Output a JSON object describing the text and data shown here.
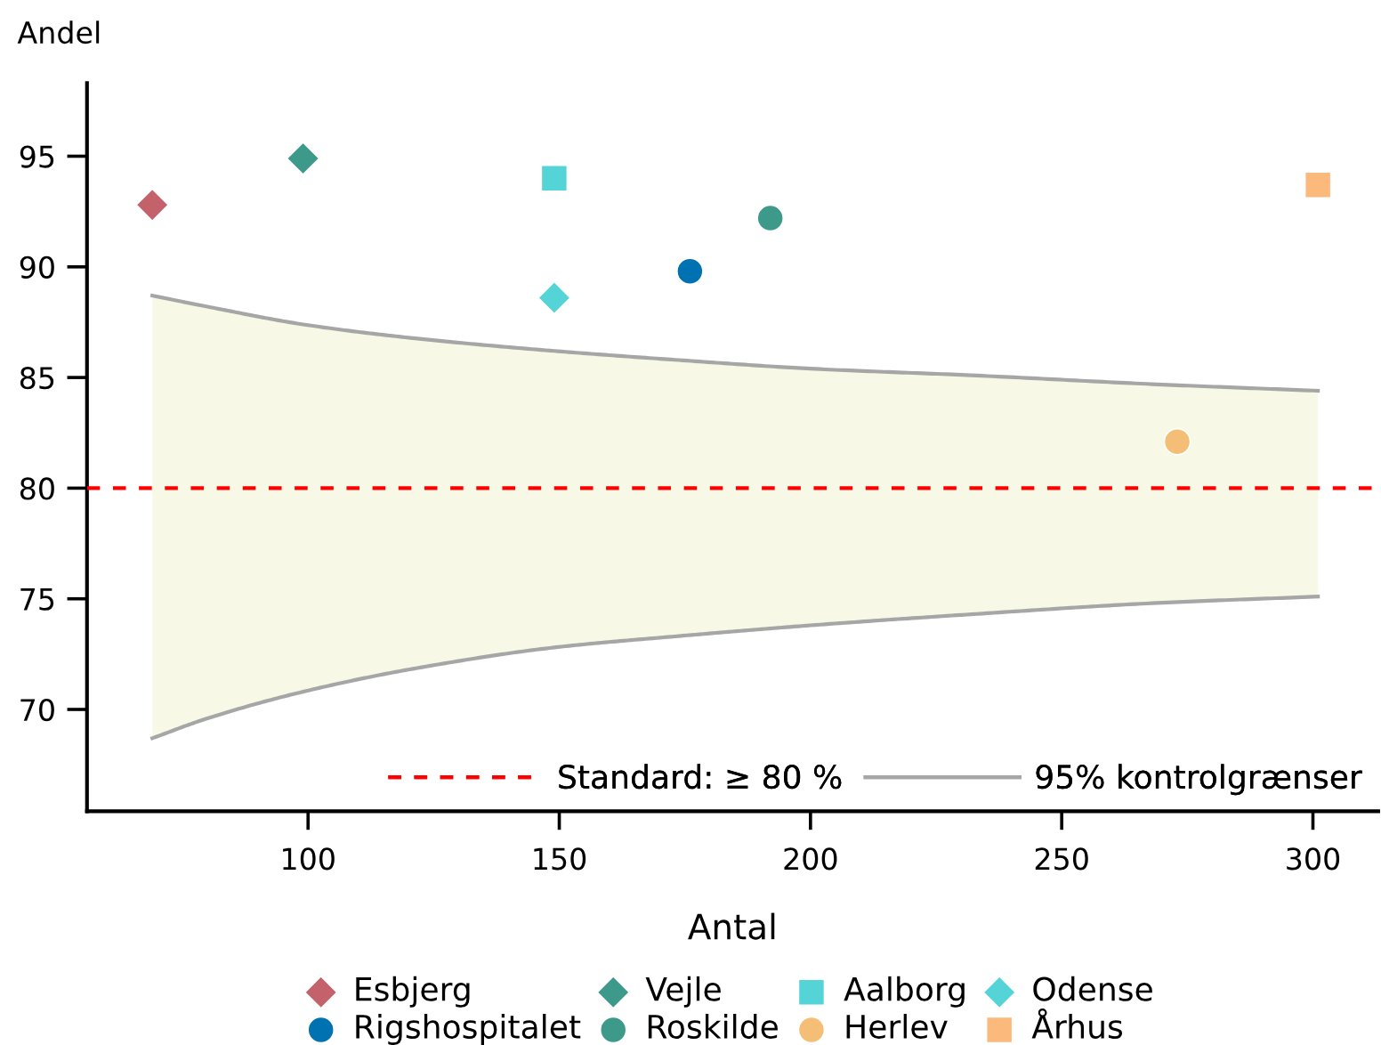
{
  "chart_data": {
    "type": "scatter",
    "xlabel": "Antal",
    "ylabel": "Andel",
    "xlim": [
      56,
      313
    ],
    "ylim": [
      65.4,
      98.3
    ],
    "xticks": [
      100,
      150,
      200,
      250,
      300
    ],
    "yticks": [
      70,
      75,
      80,
      85,
      90,
      95
    ],
    "legend": "bottom",
    "ref_lines": [
      {
        "axis": "y",
        "value": 80,
        "label": "Standard: ≥ 80 %",
        "color": "#ff0000",
        "line_style": "dashed"
      }
    ],
    "series": [
      {
        "type": "area",
        "color": "#f7f9e6",
        "x": [
          69,
          80,
          99,
          120,
          149,
          173,
          200,
          232,
          268,
          301
        ],
        "values": [
          null,
          null,
          null,
          null,
          null,
          null,
          null,
          null,
          null,
          null
        ],
        "lower": [
          68.7,
          69.6,
          70.8,
          71.8,
          72.8,
          73.3,
          73.8,
          74.3,
          74.8,
          75.1
        ],
        "upper": [
          88.7,
          88.2,
          87.4,
          86.8,
          86.2,
          85.8,
          85.4,
          85.1,
          84.7,
          84.4
        ]
      },
      {
        "name": "95% kontrolgrænser",
        "type": "line",
        "color": "#a6a6a6",
        "x": [
          69,
          80,
          99,
          120,
          149,
          173,
          200,
          232,
          268,
          301
        ],
        "values": [
          88.7,
          88.2,
          87.4,
          86.8,
          86.2,
          85.8,
          85.4,
          85.1,
          84.7,
          84.4
        ]
      },
      {
        "type": "line",
        "color": "#a6a6a6",
        "x": [
          69,
          80,
          99,
          120,
          149,
          173,
          200,
          232,
          268,
          301
        ],
        "values": [
          68.7,
          69.6,
          70.8,
          71.8,
          72.8,
          73.3,
          73.8,
          74.3,
          74.8,
          75.1
        ]
      },
      {
        "name": "Esbjerg",
        "marker": "diamond",
        "color": "#c4626c",
        "x": [
          69
        ],
        "values": [
          92.8
        ]
      },
      {
        "name": "Vejle",
        "marker": "diamond",
        "color": "#3d9a8a",
        "x": [
          99
        ],
        "values": [
          94.9
        ]
      },
      {
        "name": "Aalborg",
        "marker": "square",
        "color": "#55d4d8",
        "x": [
          149
        ],
        "values": [
          94.0
        ]
      },
      {
        "name": "Odense",
        "marker": "diamond",
        "color": "#55d4d8",
        "x": [
          149
        ],
        "values": [
          88.6
        ]
      },
      {
        "name": "Rigshospitalet",
        "marker": "circle",
        "color": "#0072b2",
        "x": [
          176
        ],
        "values": [
          89.8
        ]
      },
      {
        "name": "Roskilde",
        "marker": "circle",
        "color": "#3d9a8a",
        "x": [
          192
        ],
        "values": [
          92.2
        ]
      },
      {
        "name": "Herlev",
        "marker": "circle",
        "color": "#f4be77",
        "x": [
          273
        ],
        "values": [
          82.1
        ]
      },
      {
        "name": "Århus",
        "marker": "square",
        "color": "#fbb97c",
        "x": [
          301
        ],
        "values": [
          93.7
        ]
      }
    ]
  }
}
